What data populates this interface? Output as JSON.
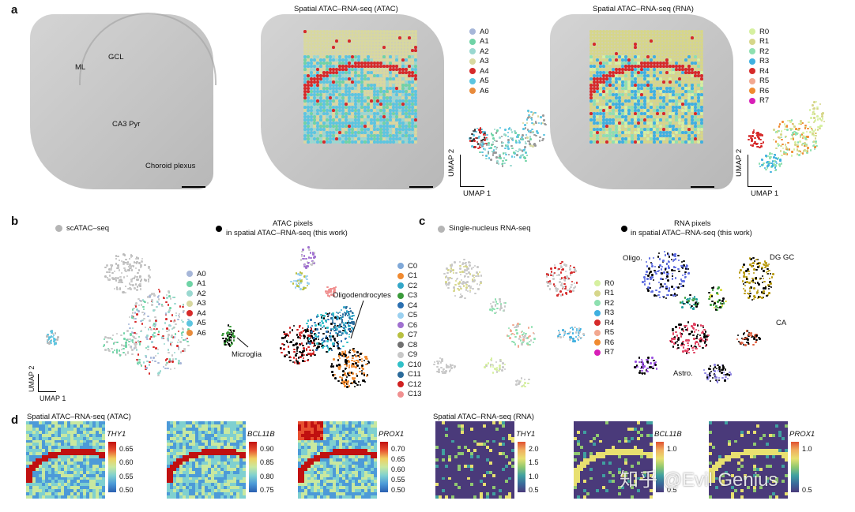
{
  "panels": {
    "a": {
      "letter": "a",
      "titles": {
        "atac": "Spatial ATAC–RNA-seq (ATAC)",
        "rna": "Spatial ATAC–RNA-seq (RNA)"
      },
      "anatomy": {
        "ml": "ML",
        "gcl": "GCL",
        "ca3": "CA3 Pyr",
        "choroid": "Choroid plexus"
      },
      "legend_atac": [
        {
          "label": "A0",
          "color": "#a6b6d8"
        },
        {
          "label": "A1",
          "color": "#6fd3a6"
        },
        {
          "label": "A2",
          "color": "#9ad8d0"
        },
        {
          "label": "A3",
          "color": "#d8d8a0"
        },
        {
          "label": "A4",
          "color": "#d62a2a"
        },
        {
          "label": "A5",
          "color": "#5cc5e0"
        },
        {
          "label": "A6",
          "color": "#e88b3c"
        }
      ],
      "legend_rna": [
        {
          "label": "R0",
          "color": "#d6f0a0"
        },
        {
          "label": "R1",
          "color": "#d6d68a"
        },
        {
          "label": "R2",
          "color": "#8ee0b0"
        },
        {
          "label": "R3",
          "color": "#3fb0e0"
        },
        {
          "label": "R4",
          "color": "#d62a2a"
        },
        {
          "label": "R5",
          "color": "#f2a890"
        },
        {
          "label": "R6",
          "color": "#f08a30"
        },
        {
          "label": "R7",
          "color": "#d81fb8"
        }
      ],
      "umap_axes": {
        "x": "UMAP 1",
        "y": "UMAP 2"
      }
    },
    "b": {
      "letter": "b",
      "sc_title": "scATAC–seq",
      "pix_title_line1": "ATAC pixels",
      "pix_title_line2": "in spatial ATAC–RNA-seq (this work)",
      "legend": [
        {
          "label": "A0",
          "color": "#a6b6d8"
        },
        {
          "label": "A1",
          "color": "#6fd3a6"
        },
        {
          "label": "A2",
          "color": "#9ad8d0"
        },
        {
          "label": "A3",
          "color": "#d8d8a0"
        },
        {
          "label": "A4",
          "color": "#d62a2a"
        },
        {
          "label": "A5",
          "color": "#5cc5e0"
        },
        {
          "label": "A6",
          "color": "#e88b3c"
        }
      ],
      "clusters": [
        {
          "label": "C0",
          "color": "#7fa8d8"
        },
        {
          "label": "C1",
          "color": "#f08a30"
        },
        {
          "label": "C2",
          "color": "#33a6c8"
        },
        {
          "label": "C3",
          "color": "#3a9a3a"
        },
        {
          "label": "C4",
          "color": "#2a6fb0"
        },
        {
          "label": "C5",
          "color": "#9ad0f0"
        },
        {
          "label": "C6",
          "color": "#a070d0"
        },
        {
          "label": "C7",
          "color": "#b8c040"
        },
        {
          "label": "C8",
          "color": "#707070"
        },
        {
          "label": "C9",
          "color": "#c8c8c8"
        },
        {
          "label": "C10",
          "color": "#30c0c8"
        },
        {
          "label": "C11",
          "color": "#2a6a9a"
        },
        {
          "label": "C12",
          "color": "#d02020"
        },
        {
          "label": "C13",
          "color": "#f09090"
        }
      ],
      "annotations": {
        "microglia": "Microglia",
        "oligo": "Oligodendrocytes"
      },
      "umap_axes": {
        "x": "UMAP 1",
        "y": "UMAP 2"
      }
    },
    "c": {
      "letter": "c",
      "sn_title": "Single-nucleus RNA-seq",
      "pix_title_line1": "RNA pixels",
      "pix_title_line2": "in spatial ATAC–RNA-seq (this work)",
      "legend": [
        {
          "label": "R0",
          "color": "#d6f0a0"
        },
        {
          "label": "R1",
          "color": "#d6d68a"
        },
        {
          "label": "R2",
          "color": "#8ee0b0"
        },
        {
          "label": "R3",
          "color": "#3fb0e0"
        },
        {
          "label": "R4",
          "color": "#d62a2a"
        },
        {
          "label": "R5",
          "color": "#f2a890"
        },
        {
          "label": "R6",
          "color": "#f08a30"
        },
        {
          "label": "R7",
          "color": "#d81fb8"
        }
      ],
      "annotations": {
        "oligo": "Oligo.",
        "dggc": "DG GC",
        "ca": "CA",
        "astro": "Astro."
      }
    },
    "d": {
      "letter": "d",
      "atac_title": "Spatial ATAC–RNA-seq (ATAC)",
      "rna_title": "Spatial ATAC–RNA-seq (RNA)",
      "maps": [
        {
          "gene": "THY1",
          "ticks": [
            "0.65",
            "0.60",
            "0.55",
            "0.50"
          ]
        },
        {
          "gene": "BCL11B",
          "ticks": [
            "0.90",
            "0.85",
            "0.80",
            "0.75"
          ]
        },
        {
          "gene": "PROX1",
          "ticks": [
            "0.70",
            "0.65",
            "0.60",
            "0.55",
            "0.50"
          ]
        },
        {
          "gene": "THY1",
          "ticks": [
            "2.0",
            "1.5",
            "1.0",
            "0.5"
          ]
        },
        {
          "gene": "BCL11B",
          "ticks": [
            "1.0",
            "0.5"
          ]
        },
        {
          "gene": "PROX1",
          "ticks": [
            "1.0",
            "0.5"
          ]
        }
      ]
    }
  },
  "watermark": "知乎 @Evil Genius"
}
